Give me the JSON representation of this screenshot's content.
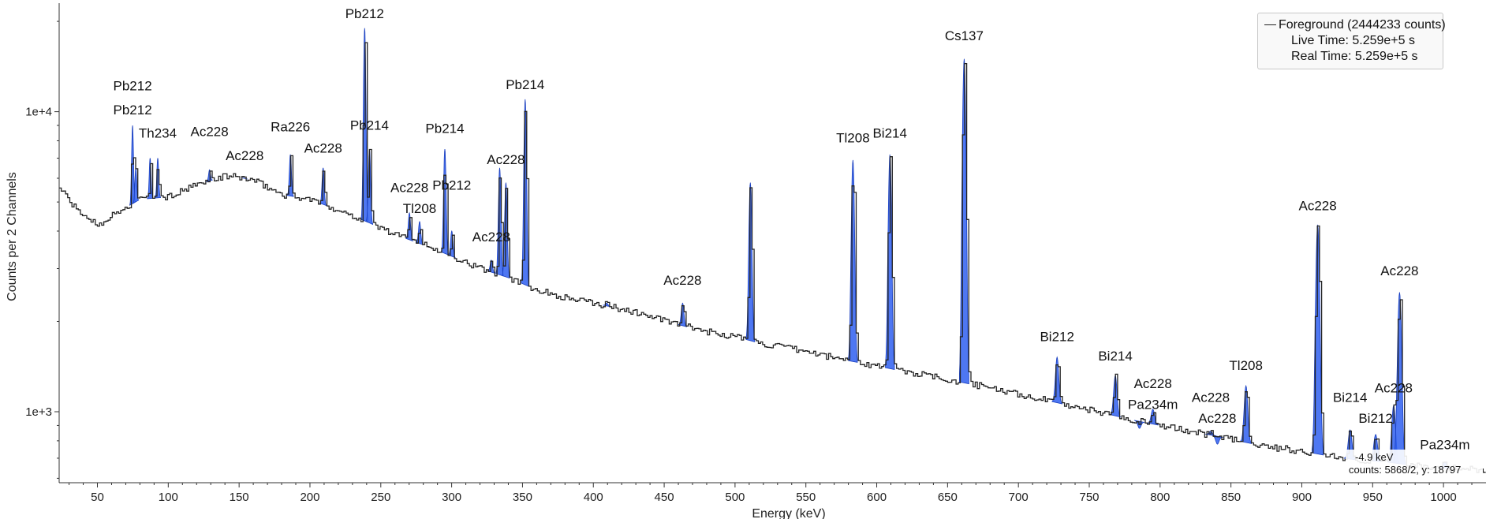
{
  "chart_data": {
    "type": "line",
    "xlabel": "Energy (keV)",
    "ylabel": "Counts per 2 Channels",
    "xlim": [
      23,
      1030
    ],
    "ylim": [
      580,
      23000
    ],
    "y_scale": "log",
    "x_ticks": [
      50,
      100,
      150,
      200,
      250,
      300,
      350,
      400,
      450,
      500,
      550,
      600,
      650,
      700,
      750,
      800,
      850,
      900,
      950,
      1000
    ],
    "y_ticks": [
      {
        "value": 1000,
        "label": "1e+3"
      },
      {
        "value": 10000,
        "label": "1e+4"
      }
    ],
    "series": [
      {
        "name": "Foreground (2444233 counts)",
        "color": "#222222",
        "continuum": [
          [
            23,
            5600
          ],
          [
            35,
            4700
          ],
          [
            50,
            4200
          ],
          [
            60,
            4500
          ],
          [
            80,
            5100
          ],
          [
            100,
            5200
          ],
          [
            120,
            5700
          ],
          [
            140,
            6100
          ],
          [
            150,
            6050
          ],
          [
            160,
            5900
          ],
          [
            180,
            5300
          ],
          [
            200,
            5100
          ],
          [
            220,
            4700
          ],
          [
            240,
            4300
          ],
          [
            260,
            3900
          ],
          [
            280,
            3600
          ],
          [
            300,
            3300
          ],
          [
            320,
            3000
          ],
          [
            340,
            2800
          ],
          [
            360,
            2550
          ],
          [
            380,
            2400
          ],
          [
            400,
            2300
          ],
          [
            420,
            2200
          ],
          [
            440,
            2080
          ],
          [
            460,
            1950
          ],
          [
            480,
            1850
          ],
          [
            500,
            1780
          ],
          [
            520,
            1680
          ],
          [
            540,
            1620
          ],
          [
            560,
            1550
          ],
          [
            580,
            1480
          ],
          [
            600,
            1420
          ],
          [
            620,
            1360
          ],
          [
            650,
            1280
          ],
          [
            680,
            1200
          ],
          [
            700,
            1140
          ],
          [
            720,
            1090
          ],
          [
            740,
            1040
          ],
          [
            760,
            990
          ],
          [
            780,
            940
          ],
          [
            800,
            900
          ],
          [
            820,
            860
          ],
          [
            840,
            830
          ],
          [
            860,
            790
          ],
          [
            880,
            760
          ],
          [
            900,
            740
          ],
          [
            920,
            710
          ],
          [
            940,
            690
          ],
          [
            960,
            680
          ],
          [
            980,
            660
          ],
          [
            1000,
            650
          ],
          [
            1030,
            640
          ]
        ],
        "peaks": [
          {
            "energy": 74.8,
            "height": 9000
          },
          {
            "energy": 77.1,
            "height": 6500
          },
          {
            "energy": 87.2,
            "height": 7000
          },
          {
            "energy": 92.6,
            "height": 7000
          },
          {
            "energy": 129.1,
            "height": 6400
          },
          {
            "energy": 153.9,
            "height": 6000
          },
          {
            "energy": 186.2,
            "height": 7200
          },
          {
            "energy": 209.3,
            "height": 6500
          },
          {
            "energy": 238.6,
            "height": 19000
          },
          {
            "energy": 242.0,
            "height": 7500
          },
          {
            "energy": 270.2,
            "height": 4600
          },
          {
            "energy": 277.4,
            "height": 4300
          },
          {
            "energy": 295.2,
            "height": 7500
          },
          {
            "energy": 300.1,
            "height": 4000
          },
          {
            "energy": 328.0,
            "height": 3200
          },
          {
            "energy": 333.9,
            "height": 6500
          },
          {
            "energy": 338.3,
            "height": 5800
          },
          {
            "energy": 351.9,
            "height": 11000
          },
          {
            "energy": 409.5,
            "height": 2300
          },
          {
            "energy": 463.0,
            "height": 2300
          },
          {
            "energy": 510.8,
            "height": 5800
          },
          {
            "energy": 583.2,
            "height": 6900
          },
          {
            "energy": 609.3,
            "height": 7200
          },
          {
            "energy": 661.7,
            "height": 15000
          },
          {
            "energy": 727.3,
            "height": 1520
          },
          {
            "energy": 768.4,
            "height": 1320
          },
          {
            "energy": 785.4,
            "height": 880
          },
          {
            "energy": 794.9,
            "height": 1020
          },
          {
            "energy": 835.7,
            "height": 860
          },
          {
            "energy": 840.4,
            "height": 780
          },
          {
            "energy": 860.6,
            "height": 1220
          },
          {
            "energy": 911.2,
            "height": 4200
          },
          {
            "energy": 934.1,
            "height": 870
          },
          {
            "energy": 952.1,
            "height": 840
          },
          {
            "energy": 964.8,
            "height": 1050
          },
          {
            "energy": 969.0,
            "height": 2500
          },
          {
            "energy": 1001.0,
            "height": 680
          }
        ]
      }
    ],
    "peak_labels": [
      {
        "text": "Pb212",
        "energy": 74.8,
        "y": 11800
      },
      {
        "text": "Pb212",
        "energy": 74.8,
        "y": 9800
      },
      {
        "text": "Th234",
        "energy": 92.6,
        "y": 8200
      },
      {
        "text": "Ac228",
        "energy": 129.1,
        "y": 8300
      },
      {
        "text": "Ac228",
        "energy": 153.9,
        "y": 6900
      },
      {
        "text": "Ra226",
        "energy": 186.2,
        "y": 8600
      },
      {
        "text": "Ac228",
        "energy": 209.3,
        "y": 7300
      },
      {
        "text": "Pb212",
        "energy": 238.6,
        "y": 20500
      },
      {
        "text": "Pb214",
        "energy": 242.0,
        "y": 8700
      },
      {
        "text": "Ac228",
        "energy": 270.2,
        "y": 5400
      },
      {
        "text": "Tl208",
        "energy": 277.4,
        "y": 4600
      },
      {
        "text": "Pb214",
        "energy": 295.2,
        "y": 8500
      },
      {
        "text": "Pb212",
        "energy": 300.1,
        "y": 5500
      },
      {
        "text": "Ac228",
        "energy": 338.3,
        "y": 6700
      },
      {
        "text": "Ac228",
        "energy": 328.0,
        "y": 3700
      },
      {
        "text": "Pb214",
        "energy": 351.9,
        "y": 11900
      },
      {
        "text": "Ac228",
        "energy": 463.0,
        "y": 2650
      },
      {
        "text": "Tl208",
        "energy": 583.2,
        "y": 7900
      },
      {
        "text": "Bi214",
        "energy": 609.3,
        "y": 8200
      },
      {
        "text": "Cs137",
        "energy": 661.7,
        "y": 17300
      },
      {
        "text": "Ac228",
        "energy": 911.2,
        "y": 4700
      },
      {
        "text": "Bi212",
        "energy": 727.3,
        "y": 1720
      },
      {
        "text": "Bi214",
        "energy": 768.4,
        "y": 1480
      },
      {
        "text": "Ac228",
        "energy": 794.9,
        "y": 1200
      },
      {
        "text": "Pa234m",
        "energy": 794.9,
        "y": 1020
      },
      {
        "text": "Tl208",
        "energy": 860.6,
        "y": 1380
      },
      {
        "text": "Ac228",
        "energy": 835.7,
        "y": 1080
      },
      {
        "text": "Ac228",
        "energy": 840.4,
        "y": 920
      },
      {
        "text": "Ac228",
        "energy": 969.0,
        "y": 2850
      },
      {
        "text": "Bi214",
        "energy": 934.1,
        "y": 1080
      },
      {
        "text": "Ac228",
        "energy": 964.8,
        "y": 1160
      },
      {
        "text": "Bi212",
        "energy": 952.1,
        "y": 920
      },
      {
        "text": "Pa234m",
        "energy": 1001.0,
        "y": 750
      }
    ],
    "grid": false,
    "legend_placement": "top-right"
  },
  "legend": {
    "series_label": "Foreground (2444233 counts)",
    "live_time": "Live Time: 5.259e+5 s",
    "real_time": "Real Time: 5.259e+5 s"
  },
  "cursor": {
    "energy": "-4.9 keV",
    "counts": "counts: 5868/2, y: 18797"
  },
  "colors": {
    "peak_fill": "#2f5ff0",
    "peak_edge": "#1a3fbf",
    "spectrum_line": "#222222"
  }
}
